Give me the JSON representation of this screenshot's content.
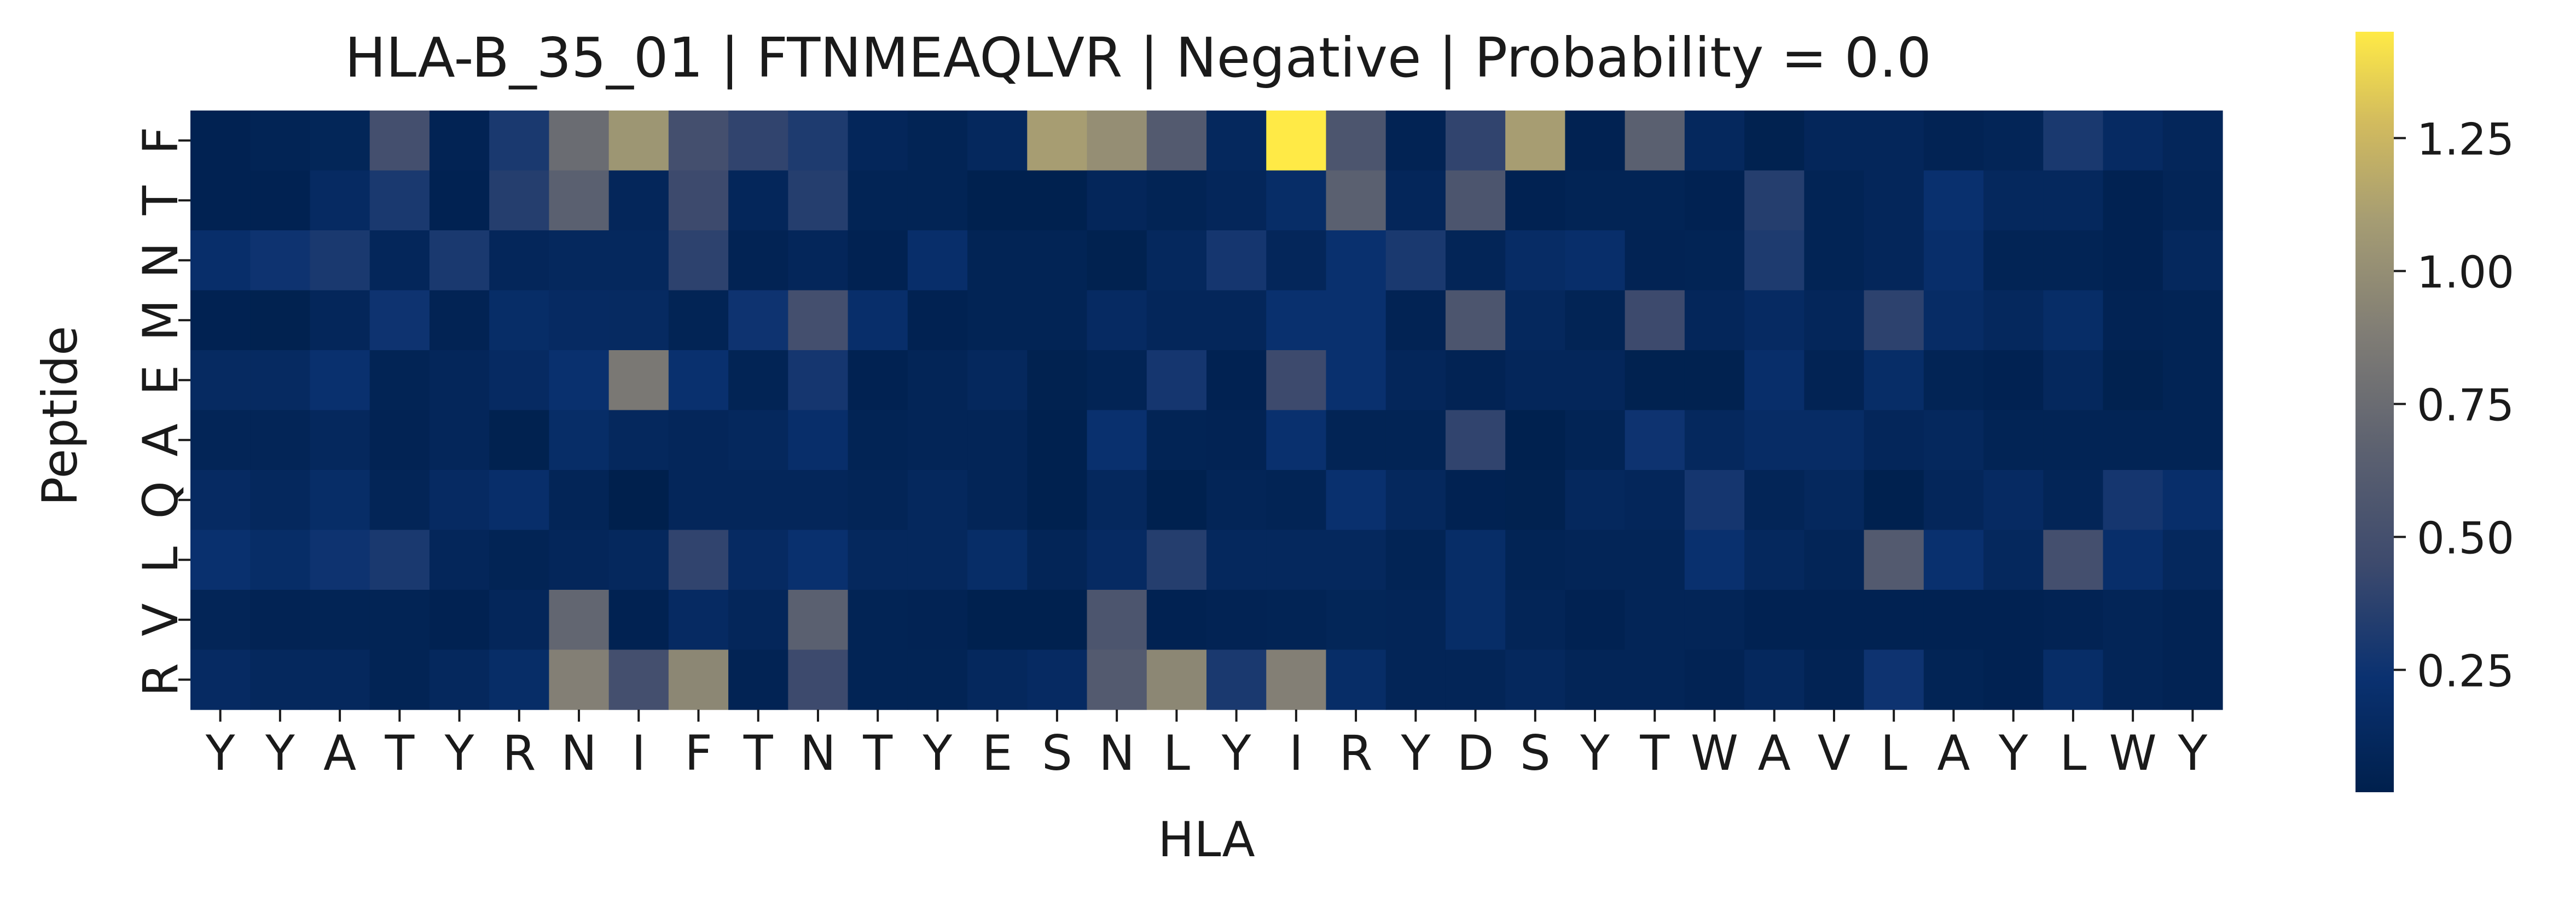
{
  "chart_data": {
    "type": "heatmap",
    "title": "HLA-B_35_01 | FTNMEAQLVR | Negative | Probability = 0.0",
    "xlabel": "HLA",
    "ylabel": "Peptide",
    "x_categories": [
      "Y",
      "Y",
      "A",
      "T",
      "Y",
      "R",
      "N",
      "I",
      "F",
      "T",
      "N",
      "T",
      "Y",
      "E",
      "S",
      "N",
      "L",
      "Y",
      "I",
      "R",
      "Y",
      "D",
      "S",
      "Y",
      "T",
      "W",
      "A",
      "V",
      "L",
      "A",
      "Y",
      "L",
      "W",
      "Y"
    ],
    "y_categories": [
      "F",
      "T",
      "N",
      "M",
      "E",
      "A",
      "Q",
      "L",
      "V",
      "R"
    ],
    "values": [
      [
        0.05,
        0.07,
        0.09,
        0.5,
        0.06,
        0.3,
        0.75,
        1.05,
        0.5,
        0.4,
        0.32,
        0.1,
        0.07,
        0.12,
        1.1,
        1.0,
        0.6,
        0.12,
        1.45,
        0.55,
        0.06,
        0.4,
        1.1,
        0.05,
        0.65,
        0.12,
        0.04,
        0.1,
        0.1,
        0.06,
        0.08,
        0.3,
        0.15,
        0.1
      ],
      [
        0.05,
        0.05,
        0.15,
        0.3,
        0.05,
        0.35,
        0.65,
        0.1,
        0.45,
        0.1,
        0.35,
        0.07,
        0.07,
        0.03,
        0.03,
        0.1,
        0.07,
        0.1,
        0.18,
        0.65,
        0.1,
        0.55,
        0.05,
        0.07,
        0.07,
        0.05,
        0.35,
        0.07,
        0.1,
        0.22,
        0.12,
        0.12,
        0.05,
        0.08
      ],
      [
        0.2,
        0.25,
        0.3,
        0.1,
        0.3,
        0.1,
        0.12,
        0.12,
        0.38,
        0.06,
        0.1,
        0.05,
        0.2,
        0.07,
        0.07,
        0.04,
        0.12,
        0.28,
        0.1,
        0.22,
        0.3,
        0.08,
        0.17,
        0.2,
        0.06,
        0.07,
        0.32,
        0.07,
        0.1,
        0.2,
        0.07,
        0.07,
        0.05,
        0.12
      ],
      [
        0.05,
        0.04,
        0.1,
        0.25,
        0.06,
        0.18,
        0.15,
        0.14,
        0.07,
        0.25,
        0.5,
        0.2,
        0.05,
        0.07,
        0.07,
        0.15,
        0.1,
        0.1,
        0.22,
        0.22,
        0.06,
        0.55,
        0.12,
        0.07,
        0.45,
        0.1,
        0.15,
        0.1,
        0.38,
        0.17,
        0.12,
        0.18,
        0.06,
        0.07
      ],
      [
        0.14,
        0.14,
        0.22,
        0.07,
        0.1,
        0.15,
        0.22,
        0.85,
        0.22,
        0.07,
        0.28,
        0.05,
        0.08,
        0.12,
        0.04,
        0.07,
        0.28,
        0.05,
        0.45,
        0.22,
        0.1,
        0.06,
        0.1,
        0.1,
        0.04,
        0.04,
        0.2,
        0.06,
        0.18,
        0.07,
        0.05,
        0.12,
        0.04,
        0.07
      ],
      [
        0.08,
        0.08,
        0.12,
        0.06,
        0.1,
        0.04,
        0.18,
        0.12,
        0.1,
        0.12,
        0.2,
        0.07,
        0.08,
        0.08,
        0.03,
        0.22,
        0.07,
        0.06,
        0.22,
        0.07,
        0.07,
        0.4,
        0.03,
        0.07,
        0.25,
        0.12,
        0.17,
        0.17,
        0.1,
        0.12,
        0.07,
        0.07,
        0.07,
        0.07
      ],
      [
        0.15,
        0.12,
        0.18,
        0.08,
        0.15,
        0.2,
        0.08,
        0.02,
        0.1,
        0.1,
        0.1,
        0.08,
        0.12,
        0.08,
        0.03,
        0.12,
        0.03,
        0.08,
        0.07,
        0.22,
        0.12,
        0.05,
        0.04,
        0.12,
        0.1,
        0.28,
        0.08,
        0.12,
        0.03,
        0.1,
        0.15,
        0.08,
        0.28,
        0.2
      ],
      [
        0.22,
        0.18,
        0.25,
        0.3,
        0.1,
        0.07,
        0.1,
        0.12,
        0.4,
        0.15,
        0.22,
        0.12,
        0.12,
        0.18,
        0.08,
        0.15,
        0.35,
        0.12,
        0.12,
        0.12,
        0.07,
        0.18,
        0.07,
        0.08,
        0.08,
        0.22,
        0.12,
        0.08,
        0.6,
        0.22,
        0.12,
        0.5,
        0.2,
        0.12
      ],
      [
        0.08,
        0.06,
        0.07,
        0.07,
        0.05,
        0.1,
        0.7,
        0.05,
        0.15,
        0.1,
        0.65,
        0.07,
        0.06,
        0.03,
        0.03,
        0.55,
        0.05,
        0.06,
        0.07,
        0.09,
        0.08,
        0.18,
        0.08,
        0.05,
        0.08,
        0.08,
        0.05,
        0.05,
        0.05,
        0.05,
        0.05,
        0.06,
        0.08,
        0.06
      ],
      [
        0.15,
        0.12,
        0.12,
        0.07,
        0.12,
        0.18,
        0.9,
        0.5,
        0.95,
        0.06,
        0.45,
        0.07,
        0.07,
        0.12,
        0.15,
        0.6,
        0.95,
        0.3,
        0.9,
        0.18,
        0.08,
        0.08,
        0.12,
        0.08,
        0.08,
        0.06,
        0.12,
        0.06,
        0.25,
        0.07,
        0.05,
        0.18,
        0.08,
        0.06
      ]
    ],
    "colorscale": {
      "name": "cividis",
      "vmin": 0.02,
      "vmax": 1.45,
      "ticks": [
        0.25,
        0.5,
        0.75,
        1.0,
        1.25
      ],
      "tick_labels": [
        "0.25",
        "0.50",
        "0.75",
        "1.00",
        "1.25"
      ]
    },
    "grid": false
  }
}
